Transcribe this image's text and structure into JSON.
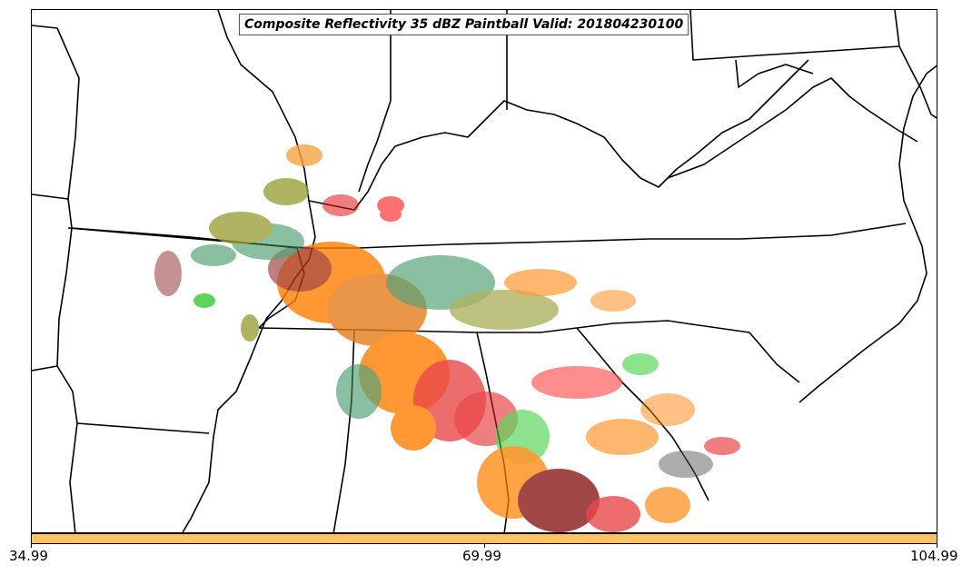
{
  "title": "Composite Reflectivity 35 dBZ Paintball Valid: 201804230100",
  "colorbar": {
    "color": "#ffc266",
    "tick_labels": [
      "34.99",
      "69.99",
      "104.99"
    ]
  },
  "basemap": {
    "boundaries": "US state outlines and coastline",
    "line_color": "#000000",
    "background": "#ffffff"
  },
  "paintball_colors": [
    "#ff7f00",
    "#e31a1c",
    "#8b1a1a",
    "#33cc33",
    "#2e8b57",
    "#9aa03a",
    "#ff4d4d",
    "#555555",
    "#f4a442"
  ]
}
